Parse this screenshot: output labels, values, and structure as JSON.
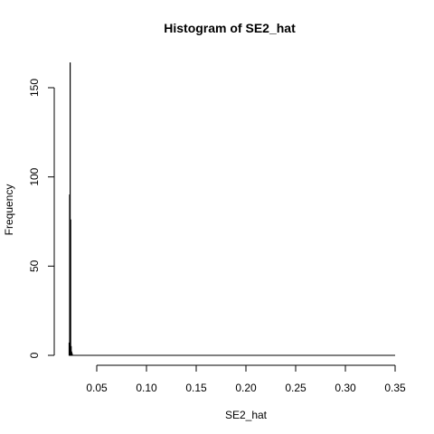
{
  "chart_data": {
    "type": "bar",
    "title": "Histogram of SE2_hat",
    "xlabel": "SE2_hat",
    "ylabel": "Frequency",
    "xlim": [
      0.022,
      0.35
    ],
    "ylim": [
      0,
      160
    ],
    "xticks": [
      0.05,
      0.1,
      0.15,
      0.2,
      0.25,
      0.3,
      0.35
    ],
    "xtick_labels": [
      "0.05",
      "0.10",
      "0.15",
      "0.20",
      "0.25",
      "0.30",
      "0.35"
    ],
    "yticks": [
      0,
      50,
      100,
      150
    ],
    "ytick_labels": [
      "0",
      "50",
      "100",
      "150"
    ],
    "bins": [
      {
        "x0": 0.022,
        "x1": 0.0225,
        "count": 7
      },
      {
        "x0": 0.0225,
        "x1": 0.023,
        "count": 90
      },
      {
        "x0": 0.023,
        "x1": 0.0235,
        "count": 164
      },
      {
        "x0": 0.0235,
        "x1": 0.024,
        "count": 76
      },
      {
        "x0": 0.024,
        "x1": 0.0245,
        "count": 5
      },
      {
        "x0": 0.0245,
        "x1": 0.025,
        "count": 2
      },
      {
        "x0": 0.025,
        "x1": 0.0255,
        "count": 1
      }
    ],
    "grid": false,
    "legend": "none"
  }
}
